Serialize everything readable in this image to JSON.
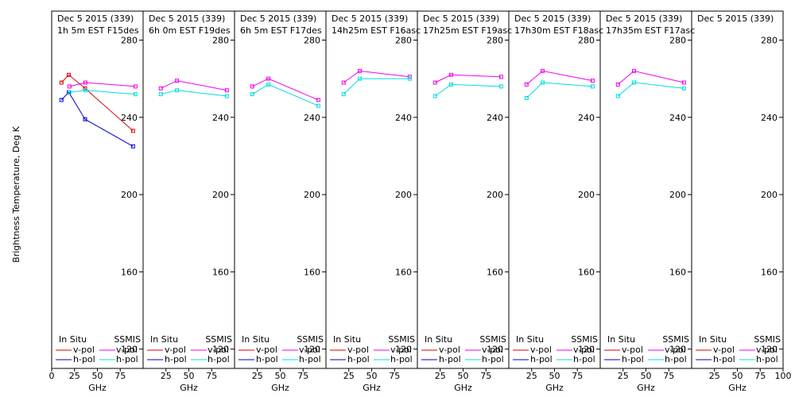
{
  "ylabel": "Brightness Temperature, Deg K",
  "xlabel": "GHz",
  "legend": {
    "in_situ": "In Situ",
    "ssmis": "SSMIS",
    "vpol": "v-pol",
    "hpol": "h-pol"
  },
  "colors": {
    "insitu_v": "#dd0000",
    "insitu_h": "#0000cc",
    "ssmis_v": "#ee00ee",
    "ssmis_h": "#00dddd"
  },
  "chart_data": {
    "type": "line",
    "ylim": [
      110,
      295
    ],
    "xlim": [
      0,
      100
    ],
    "yticks": [
      120,
      160,
      200,
      240,
      280
    ],
    "first_xticks": [
      "0",
      "25",
      "50",
      "75"
    ],
    "xticks": [
      "25",
      "50",
      "75"
    ],
    "last_xticks": [
      "25",
      "50",
      "75",
      "100"
    ],
    "panels": [
      {
        "title": "Dec 5 2015 (339)",
        "subtitle": "1h 5m  EST F15des",
        "series": [
          {
            "key": "insitu_v",
            "x": [
              10.7,
              18.7,
              36.5,
              89.0
            ],
            "y": [
              258,
              262,
              255,
              233
            ]
          },
          {
            "key": "insitu_h",
            "x": [
              10.7,
              18.7,
              36.5,
              89.0
            ],
            "y": [
              249,
              253,
              239,
              225
            ]
          },
          {
            "key": "ssmis_v",
            "x": [
              19.35,
              37.0,
              91.65
            ],
            "y": [
              256,
              258,
              256
            ]
          },
          {
            "key": "ssmis_h",
            "x": [
              19.35,
              37.0,
              91.65
            ],
            "y": [
              253,
              254,
              252
            ]
          }
        ]
      },
      {
        "title": "Dec 5 2015 (339)",
        "subtitle": "6h 0m  EST F19des",
        "series": [
          {
            "key": "ssmis_v",
            "x": [
              19.35,
              37.0,
              91.65
            ],
            "y": [
              255,
              259,
              254
            ]
          },
          {
            "key": "ssmis_h",
            "x": [
              19.35,
              37.0,
              91.65
            ],
            "y": [
              252,
              254,
              251
            ]
          }
        ]
      },
      {
        "title": "Dec 5 2015 (339)",
        "subtitle": "6h 5m  EST F17des",
        "series": [
          {
            "key": "ssmis_v",
            "x": [
              19.35,
              37.0,
              91.65
            ],
            "y": [
              256,
              260,
              249
            ]
          },
          {
            "key": "ssmis_h",
            "x": [
              19.35,
              37.0,
              91.65
            ],
            "y": [
              252,
              257,
              246
            ]
          }
        ]
      },
      {
        "title": "Dec 5 2015 (339)",
        "subtitle": "14h25m  EST F16asc",
        "series": [
          {
            "key": "ssmis_v",
            "x": [
              19.35,
              37.0,
              91.65
            ],
            "y": [
              258,
              264,
              261
            ]
          },
          {
            "key": "ssmis_h",
            "x": [
              19.35,
              37.0,
              91.65
            ],
            "y": [
              252,
              260,
              260
            ]
          }
        ]
      },
      {
        "title": "Dec 5 2015 (339)",
        "subtitle": "17h25m  EST F19asc",
        "series": [
          {
            "key": "ssmis_v",
            "x": [
              19.35,
              37.0,
              91.65
            ],
            "y": [
              258,
              262,
              261
            ]
          },
          {
            "key": "ssmis_h",
            "x": [
              19.35,
              37.0,
              91.65
            ],
            "y": [
              251,
              257,
              256
            ]
          }
        ]
      },
      {
        "title": "Dec 5 2015 (339)",
        "subtitle": "17h30m  EST F18asc",
        "series": [
          {
            "key": "ssmis_v",
            "x": [
              19.35,
              37.0,
              91.65
            ],
            "y": [
              257,
              264,
              259
            ]
          },
          {
            "key": "ssmis_h",
            "x": [
              19.35,
              37.0,
              91.65
            ],
            "y": [
              250,
              258,
              256
            ]
          }
        ]
      },
      {
        "title": "Dec 5 2015 (339)",
        "subtitle": "17h35m  EST F17asc",
        "series": [
          {
            "key": "ssmis_v",
            "x": [
              19.35,
              37.0,
              91.65
            ],
            "y": [
              257,
              264,
              258
            ]
          },
          {
            "key": "ssmis_h",
            "x": [
              19.35,
              37.0,
              91.65
            ],
            "y": [
              251,
              258,
              255
            ]
          }
        ]
      },
      {
        "title": "Dec 5 2015 (339)",
        "subtitle": "",
        "series": []
      }
    ]
  }
}
